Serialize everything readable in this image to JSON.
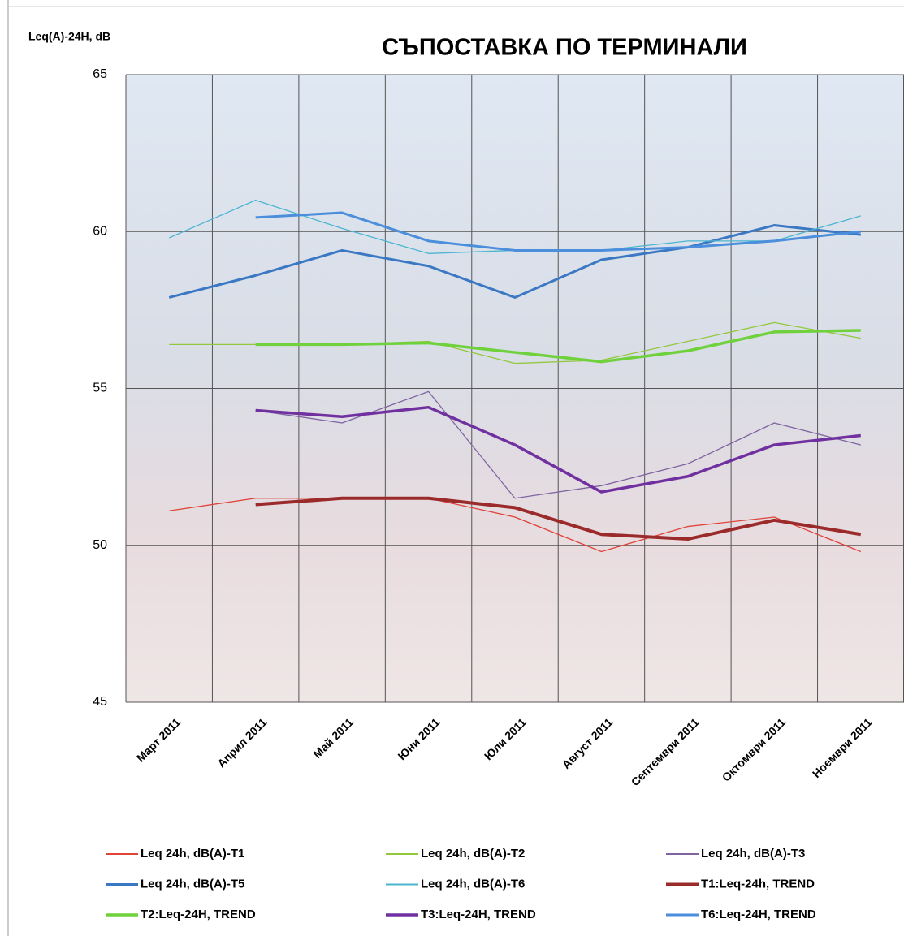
{
  "chart_data": {
    "type": "line",
    "title": "СЪПОСТАВКА ПО ТЕРМИНАЛИ",
    "y_label": "Leq(A)-24H, dB",
    "categories": [
      "Март 2011",
      "Април 2011",
      "Май 2011",
      "Юни 2011",
      "Юли 2011",
      "Август 2011",
      "Септември 2011",
      "Октомври 2011",
      "Ноември 2011"
    ],
    "ylim": [
      45,
      65
    ],
    "yticks": [
      45,
      50,
      55,
      60,
      65
    ],
    "grid": true,
    "series": [
      {
        "name": "Leq 24h, dB(A)-T1",
        "color": "#e0433a",
        "width": 1.3,
        "values": [
          51.1,
          51.5,
          51.5,
          51.5,
          50.9,
          49.8,
          50.6,
          50.9,
          49.8
        ]
      },
      {
        "name": "Leq 24h, dB(A)-T2",
        "color": "#92c83e",
        "width": 1.3,
        "values": [
          56.4,
          56.4,
          56.4,
          56.5,
          55.8,
          55.9,
          56.5,
          57.1,
          56.6
        ]
      },
      {
        "name": "Leq 24h, dB(A)-T3",
        "color": "#8064a2",
        "width": 1.3,
        "values": [
          null,
          54.3,
          53.9,
          54.9,
          51.5,
          51.9,
          52.6,
          53.9,
          53.2
        ]
      },
      {
        "name": "Leq 24h, dB(A)-T5",
        "color": "#3a78c4",
        "width": 3,
        "values": [
          57.9,
          58.6,
          59.4,
          58.9,
          57.9,
          59.1,
          59.5,
          60.2,
          59.9
        ]
      },
      {
        "name": "Leq 24h, dB(A)-T6",
        "color": "#4bb5d0",
        "width": 1.3,
        "values": [
          59.8,
          61.0,
          60.1,
          59.3,
          59.4,
          59.4,
          59.7,
          59.7,
          60.5
        ]
      },
      {
        "name": "T1:Leq-24h, TREND",
        "color": "#9b2a2a",
        "width": 4,
        "values": [
          null,
          51.3,
          51.5,
          51.5,
          51.2,
          50.35,
          50.2,
          50.8,
          50.35
        ]
      },
      {
        "name": "T2:Leq-24H, TREND",
        "color": "#6fd13b",
        "width": 3.5,
        "values": [
          null,
          56.4,
          56.4,
          56.45,
          56.15,
          55.85,
          56.2,
          56.8,
          56.85
        ]
      },
      {
        "name": "T3:Leq-24H, TREND",
        "color": "#7030a0",
        "width": 3.5,
        "values": [
          null,
          54.3,
          54.1,
          54.4,
          53.2,
          51.7,
          52.2,
          53.2,
          53.5
        ]
      },
      {
        "name": "T6:Leq-24H, TREND",
        "color": "#4a8edc",
        "width": 3,
        "values": [
          null,
          60.45,
          60.6,
          59.7,
          59.4,
          59.4,
          59.5,
          59.7,
          60.0
        ]
      }
    ]
  }
}
